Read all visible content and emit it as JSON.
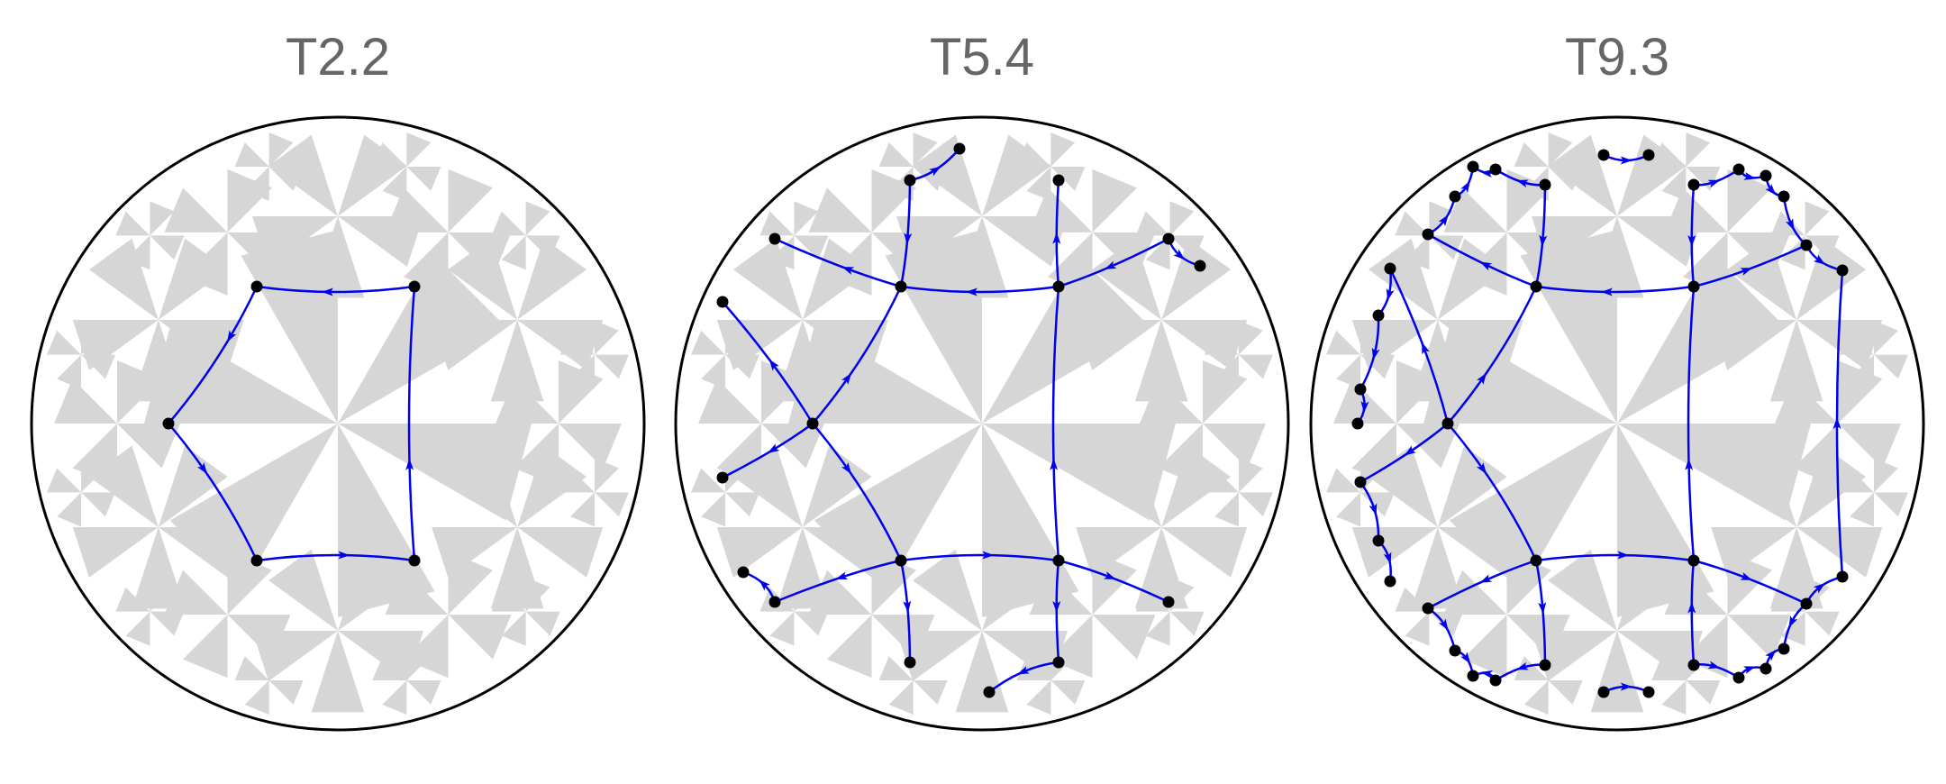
{
  "panels": [
    {
      "title": "T2.2"
    },
    {
      "title": "T5.4"
    },
    {
      "title": "T9.3"
    }
  ],
  "colors": {
    "tile": "#d6d6d6",
    "edge": "#0000ee",
    "node": "#000000",
    "disk": "#000000",
    "title": "#666666"
  }
}
